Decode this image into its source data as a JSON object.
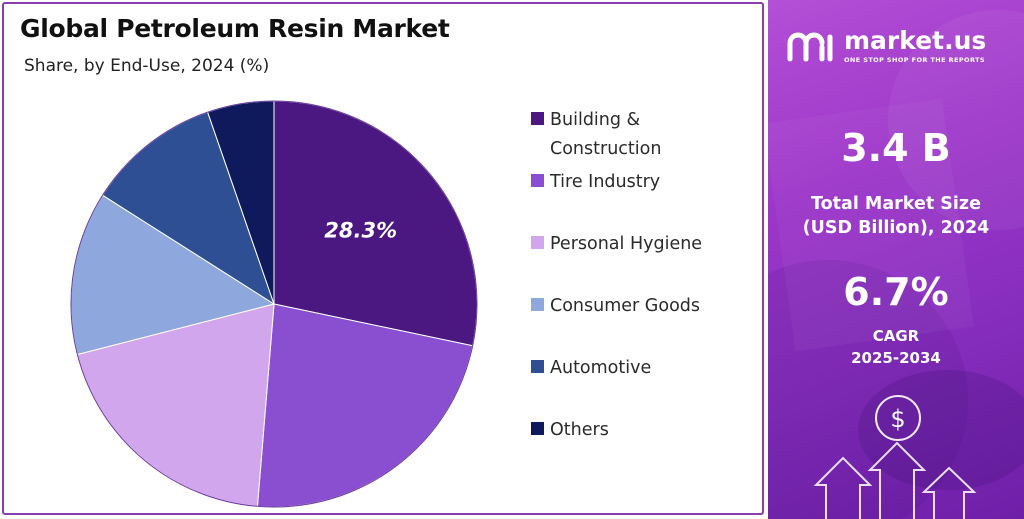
{
  "chart_data": {
    "type": "pie",
    "title": "Global Petroleum Resin Market",
    "subtitle": "Share, by End-Use, 2024 (%)",
    "categories": [
      "Building & Construction",
      "Tire Industry",
      "Personal Hygiene",
      "Consumer Goods",
      "Automotive",
      "Others"
    ],
    "values": [
      28.3,
      23.0,
      19.7,
      13.0,
      10.7,
      5.3
    ],
    "colors": [
      "#4b1780",
      "#8a4fd0",
      "#d1a6ec",
      "#8ea8de",
      "#2f4f94",
      "#0e1a5c"
    ],
    "data_labels": [
      "28.3%",
      "",
      "",
      "",
      "",
      ""
    ],
    "legend_position": "right"
  },
  "legend": {
    "items": [
      {
        "label_line1": "Building &",
        "label_line2": "Construction"
      },
      {
        "label_line1": "Tire Industry"
      },
      {
        "label_line1": "Personal Hygiene"
      },
      {
        "label_line1": "Consumer Goods"
      },
      {
        "label_line1": "Automotive"
      },
      {
        "label_line1": "Others"
      }
    ]
  },
  "brand": {
    "name": "market.us",
    "tagline": "ONE STOP SHOP FOR THE REPORTS"
  },
  "stats": {
    "market_size_value": "3.4 B",
    "market_size_label_line1": "Total Market Size",
    "market_size_label_line2": "(USD Billion), 2024",
    "cagr_value": "6.7%",
    "cagr_label_line1": "CAGR",
    "cagr_label_line2": "2025-2034"
  },
  "icons": {
    "dollar_symbol": "$"
  }
}
